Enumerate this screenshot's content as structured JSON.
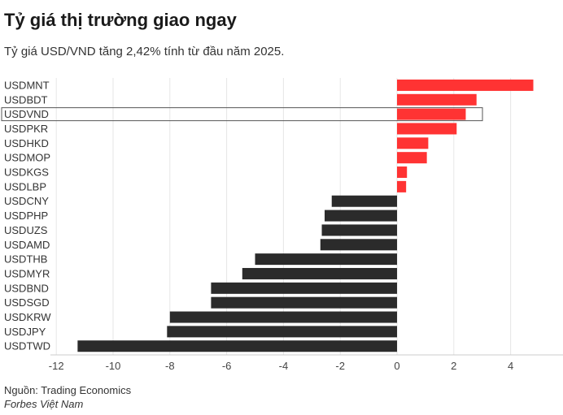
{
  "title": "Tỷ giá thị trường giao ngay",
  "subtitle": "Tỷ giá USD/VND tăng 2,42% tính từ đầu năm 2025.",
  "source": "Nguồn: Trading Economics",
  "brand": "Forbes Việt Nam",
  "colors": {
    "positive": "#ff3333",
    "negative": "#2b2b2b",
    "grid": "#e6e6e6",
    "highlight_border": "#555555"
  },
  "chart_data": {
    "type": "bar",
    "orientation": "horizontal",
    "categories": [
      "USDMNT",
      "USDBDT",
      "USDVND",
      "USDPKR",
      "USDHKD",
      "USDMOP",
      "USDKGS",
      "USDLBP",
      "USDCNY",
      "USDPHP",
      "USDUZS",
      "USDAMD",
      "USDTHB",
      "USDMYR",
      "USDBND",
      "USDSGD",
      "USDKRW",
      "USDJPY",
      "USDTWD"
    ],
    "values": [
      4.8,
      2.8,
      2.42,
      2.1,
      1.1,
      1.05,
      0.35,
      0.32,
      -2.3,
      -2.55,
      -2.65,
      -2.7,
      -5.0,
      -5.45,
      -6.55,
      -6.55,
      -8.0,
      -8.1,
      -11.25
    ],
    "highlight": "USDVND",
    "xlim": [
      -12,
      5.8
    ],
    "xticks": [
      "-12",
      "-10",
      "-8",
      "-6",
      "-4",
      "-2",
      "0",
      "2",
      "4"
    ],
    "xtick_values": [
      -12,
      -10,
      -8,
      -6,
      -4,
      -2,
      0,
      2,
      4
    ],
    "grid": true
  }
}
